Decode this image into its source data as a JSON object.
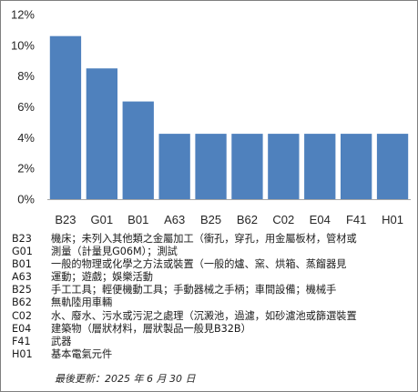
{
  "chart_data": {
    "type": "bar",
    "categories": [
      "B23",
      "G01",
      "B01",
      "A63",
      "B25",
      "B62",
      "C02",
      "E04",
      "F41",
      "H01"
    ],
    "values": [
      10.6,
      8.5,
      6.35,
      4.25,
      4.25,
      4.25,
      4.25,
      4.25,
      4.25,
      4.25
    ],
    "ylim": [
      0,
      12
    ],
    "yticks": [
      "0%",
      "2%",
      "4%",
      "6%",
      "8%",
      "10%",
      "12%"
    ],
    "grid": false,
    "bar_color": "#4f81bd",
    "axis_color": "#a6a6a6"
  },
  "legend": [
    {
      "code": "B23",
      "desc": "機床；未列入其他類之金屬加工（衝孔，穿孔，用金屬板材，管材或"
    },
    {
      "code": "G01",
      "desc": "測量（計量見G06M）；測試"
    },
    {
      "code": "B01",
      "desc": "一般的物理或化學之方法或裝置（一般的爐、窯、烘箱、蒸餾器見"
    },
    {
      "code": "A63",
      "desc": "運動；遊戲；娛樂活動"
    },
    {
      "code": "B25",
      "desc": "手工工具；輕便機動工具；手動器械之手柄；車間設備；機械手"
    },
    {
      "code": "B62",
      "desc": "無軌陸用車輛"
    },
    {
      "code": "C02",
      "desc": "水、廢水、污水或污泥之處理（沉澱池，過濾，如砂濾池或篩選裝置"
    },
    {
      "code": "E04",
      "desc": "建築物（層狀材料，層狀製品一般見B32B）"
    },
    {
      "code": "F41",
      "desc": "武器"
    },
    {
      "code": "H01",
      "desc": "基本電氣元件"
    }
  ],
  "updated": "最後更新：2025 年 6 月 30 日"
}
